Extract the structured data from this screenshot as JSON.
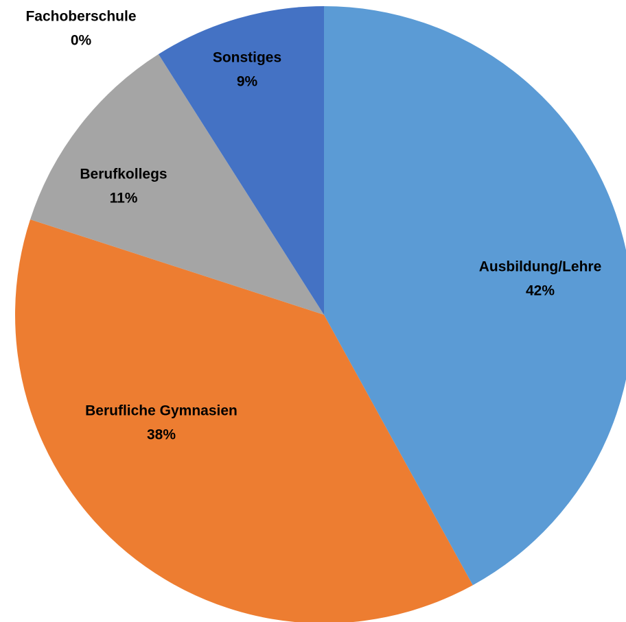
{
  "chart_data": {
    "type": "pie",
    "categories": [
      "Ausbildung/Lehre",
      "Berufliche Gymnasien",
      "Berufkollegs",
      "Fachoberschule",
      "Sonstiges"
    ],
    "values": [
      42,
      38,
      11,
      0,
      9
    ],
    "value_labels": [
      "42%",
      "38%",
      "11%",
      "0%",
      "9%"
    ],
    "colors": [
      "#5b9bd5",
      "#ed7d31",
      "#a5a5a5",
      "#ffc000",
      "#4472c4"
    ]
  }
}
